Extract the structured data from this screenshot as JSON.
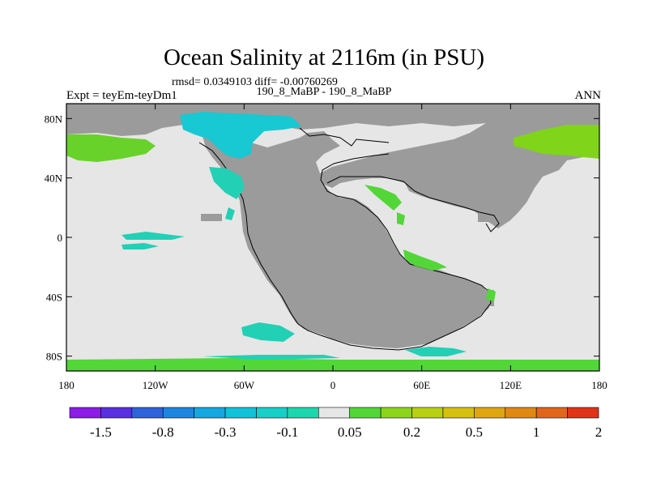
{
  "title": "Ocean Salinity at 2116m (in PSU)",
  "stats_line": "rmsd= 0.0349103 diff= -0.00760269",
  "subtitle": "190_8_MaBP - 190_8_MaBP",
  "left_label": "Expt = teyEm-teyDm1",
  "right_label": "ANN",
  "map": {
    "projection": "cylindrical-equidistant",
    "lon_range": [
      -180,
      180
    ],
    "lat_range": [
      -90,
      90
    ],
    "ocean_color": "#e6e6e6",
    "land_color": "#9b9b9b",
    "x_ticks": [
      {
        "lon": -180,
        "label": "180"
      },
      {
        "lon": -120,
        "label": "120W"
      },
      {
        "lon": -60,
        "label": "60W"
      },
      {
        "lon": 0,
        "label": "0"
      },
      {
        "lon": 60,
        "label": "60E"
      },
      {
        "lon": 120,
        "label": "120E"
      },
      {
        "lon": 180,
        "label": "180"
      }
    ],
    "y_ticks": [
      {
        "lat": 80,
        "label": "80N"
      },
      {
        "lat": 40,
        "label": "40N"
      },
      {
        "lat": 0,
        "label": "0"
      },
      {
        "lat": -40,
        "label": "40S"
      },
      {
        "lat": -80,
        "label": "80S"
      }
    ]
  },
  "colorbar": {
    "colors": [
      "#8c1ce6",
      "#5a2fe0",
      "#2f63da",
      "#1f86e0",
      "#14a7e0",
      "#12c2d9",
      "#18cfc8",
      "#1ed6ad",
      "#e6e6e6",
      "#52d638",
      "#8cd51c",
      "#b8d012",
      "#d6c010",
      "#e0a612",
      "#e08814",
      "#e0661c",
      "#e03418"
    ],
    "labels": [
      "-1.5",
      "-0.8",
      "-0.3",
      "-0.1",
      "0.05",
      "0.2",
      "0.5",
      "1",
      "2"
    ]
  }
}
